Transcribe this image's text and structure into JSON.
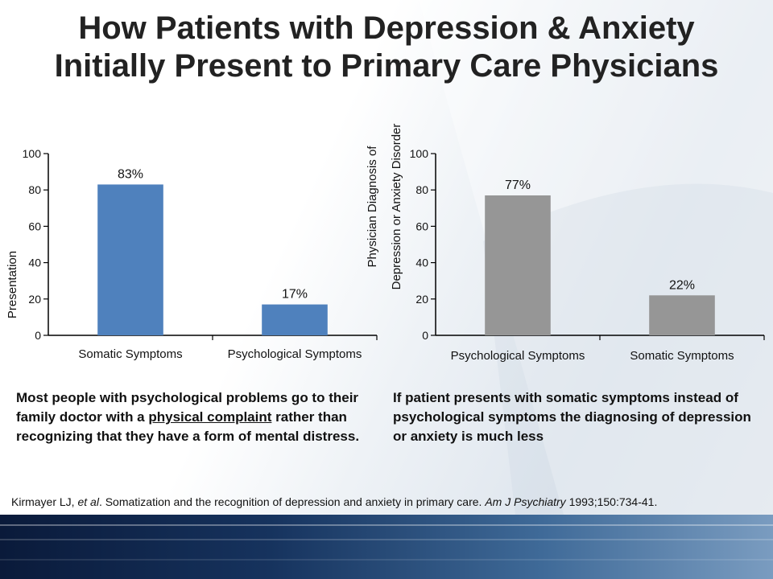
{
  "title": {
    "line1": "How Patients with Depression & Anxiety",
    "line2": "Initially Present to Primary Care Physicians"
  },
  "chart_data": [
    {
      "type": "bar",
      "categories": [
        "Somatic Symptoms",
        "Psychological Symptoms"
      ],
      "values": [
        83,
        17
      ],
      "data_labels": [
        "83%",
        "17%"
      ],
      "ylabel": "Presentation",
      "ylim": [
        0,
        100
      ],
      "yticks": [
        "0",
        "20",
        "40",
        "60",
        "80",
        "100"
      ],
      "color": "#4f81bd"
    },
    {
      "type": "bar",
      "categories": [
        "Psychological Symptoms",
        "Somatic Symptoms"
      ],
      "values": [
        77,
        22
      ],
      "data_labels": [
        "77%",
        "22%"
      ],
      "ylabel_lines": [
        "Physician Diagnosis of",
        "Depression or Anxiety Disorder"
      ],
      "ylim": [
        0,
        100
      ],
      "yticks": [
        "0",
        "20",
        "40",
        "60",
        "80",
        "100"
      ],
      "color": "#969696"
    }
  ],
  "left_text": {
    "part1": "Most people with psychological problems go to their family doctor with a ",
    "underlined": "physical complaint",
    "part2": " rather than recognizing that they have a form of mental distress."
  },
  "right_text": "If patient presents with somatic symptoms instead of psychological symptoms the diagnosing of depression or anxiety is much less",
  "citation": {
    "authors": "Kirmayer LJ, ",
    "etal": "et al",
    "mid": ". Somatization and the recognition of depression and anxiety in primary care. ",
    "journal": "Am J Psychiatry",
    "tail": " 1993;150:734-41."
  }
}
